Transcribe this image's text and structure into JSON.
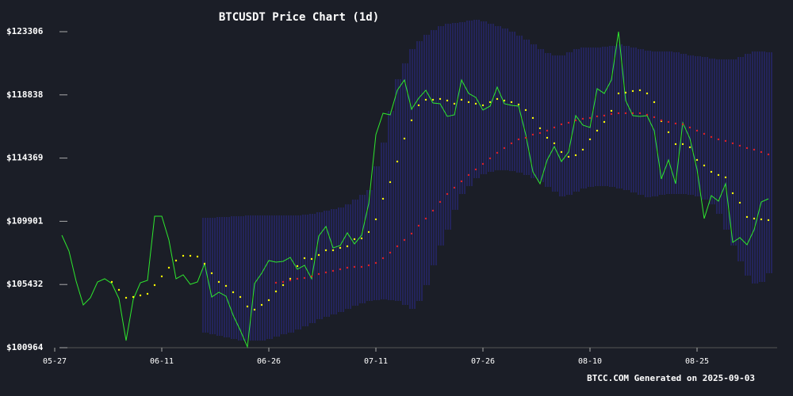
{
  "chart_data": {
    "type": "line",
    "title": "BTCUSDT Price Chart (1d)",
    "footer": "BTCC.COM Generated on 2025-09-03",
    "background": "#1b1e27",
    "categories": [
      "05-27",
      null,
      null,
      null,
      null,
      null,
      null,
      null,
      null,
      null,
      null,
      null,
      null,
      null,
      null,
      "06-11",
      null,
      null,
      null,
      null,
      null,
      null,
      null,
      null,
      null,
      null,
      null,
      null,
      null,
      null,
      "06-26",
      null,
      null,
      null,
      null,
      null,
      null,
      null,
      null,
      null,
      null,
      null,
      null,
      null,
      null,
      "07-11",
      null,
      null,
      null,
      null,
      null,
      null,
      null,
      null,
      null,
      null,
      null,
      null,
      null,
      null,
      "07-26",
      null,
      null,
      null,
      null,
      null,
      null,
      null,
      null,
      null,
      null,
      null,
      null,
      null,
      null,
      "08-10",
      null,
      null,
      null,
      null,
      null,
      null,
      null,
      null,
      null,
      null,
      null,
      null,
      null,
      null,
      "08-25",
      null,
      null,
      null,
      null,
      null,
      null,
      null,
      null,
      null,
      null
    ],
    "xticks": [
      0,
      15,
      30,
      45,
      60,
      75,
      90
    ],
    "ylim": [
      100964,
      123306
    ],
    "yticks": [
      {
        "value": 100964,
        "label": "$100964"
      },
      {
        "value": 105432,
        "label": "$105432"
      },
      {
        "value": 109901,
        "label": "$109901"
      },
      {
        "value": 114369,
        "label": "$114369"
      },
      {
        "value": 118838,
        "label": "$118838"
      },
      {
        "value": 123306,
        "label": "$123306"
      }
    ],
    "band": {
      "color": "#2b2b8c",
      "upper": [
        null,
        null,
        null,
        null,
        null,
        null,
        null,
        null,
        null,
        null,
        null,
        null,
        null,
        null,
        null,
        null,
        null,
        null,
        null,
        null,
        null,
        110148,
        110148,
        110204,
        110204,
        110260,
        110260,
        110316,
        110316,
        110316,
        110316,
        110316,
        110316,
        110316,
        110316,
        110372,
        110428,
        110540,
        110652,
        110764,
        110876,
        111100,
        111436,
        111772,
        112108,
        113788,
        115468,
        117708,
        119948,
        121068,
        122076,
        122636,
        123084,
        123420,
        123700,
        123868,
        123924,
        123980,
        124092,
        124148,
        124036,
        123868,
        123700,
        123532,
        123308,
        123028,
        122748,
        122412,
        122076,
        121796,
        121628,
        121628,
        121852,
        122076,
        122188,
        122188,
        122188,
        122244,
        122300,
        122412,
        122300,
        122188,
        122076,
        121964,
        121908,
        121908,
        121908,
        121852,
        121740,
        121628,
        121572,
        121516,
        121404,
        121348,
        121348,
        121348,
        121516,
        121740,
        121908,
        121908,
        121852
      ],
      "lower": [
        null,
        null,
        null,
        null,
        null,
        null,
        null,
        null,
        null,
        null,
        null,
        null,
        null,
        null,
        null,
        null,
        null,
        null,
        null,
        null,
        null,
        102028,
        101916,
        101804,
        101692,
        101580,
        101468,
        101468,
        101468,
        101468,
        101580,
        101748,
        101916,
        102028,
        102252,
        102476,
        102700,
        102980,
        103148,
        103316,
        103484,
        103708,
        103932,
        104100,
        104268,
        104324,
        104380,
        104324,
        104268,
        103988,
        103708,
        104268,
        105388,
        106788,
        108188,
        109308,
        110708,
        111828,
        112388,
        112948,
        113228,
        113396,
        113508,
        113508,
        113452,
        113340,
        113172,
        112948,
        112668,
        112332,
        111996,
        111660,
        111772,
        111996,
        112220,
        112332,
        112388,
        112388,
        112332,
        112220,
        112108,
        111940,
        111772,
        111604,
        111660,
        111772,
        111828,
        111828,
        111828,
        111772,
        111660,
        111436,
        111100,
        110428,
        109308,
        108188,
        107068,
        106060,
        105500,
        105612,
        106228
      ]
    },
    "series": [
      {
        "color": "#2ee82e",
        "style": "line",
        "values": [
          null,
          108916,
          107796,
          105668,
          103988,
          104492,
          105612,
          105836,
          105500,
          104436,
          101468,
          104380,
          105556,
          105724,
          110260,
          110260,
          108580,
          105836,
          106116,
          105444,
          105612,
          106900,
          104548,
          104884,
          104604,
          103260,
          102196,
          101020,
          105500,
          106228,
          107124,
          107012,
          107068,
          107348,
          106508,
          106788,
          105836,
          108860,
          109532,
          108020,
          108188,
          109084,
          108300,
          108916,
          111156,
          116028,
          117540,
          117428,
          119164,
          119892,
          117820,
          118604,
          119164,
          118268,
          118212,
          117316,
          117428,
          119892,
          118940,
          118660,
          117764,
          118044,
          119388,
          118212,
          118100,
          118044,
          116028,
          113396,
          112556,
          114236,
          115188,
          114124,
          114796,
          117372,
          116700,
          116532,
          119276,
          118940,
          119892,
          123306,
          118436,
          117372,
          117316,
          117372,
          116308,
          112892,
          114236,
          112556,
          116868,
          115748,
          113564,
          110092,
          111716,
          111324,
          112556,
          108412,
          108748,
          108244,
          109308,
          111268,
          111492
        ]
      },
      {
        "color": "#ffff00",
        "style": "dots",
        "values": [
          null,
          null,
          null,
          null,
          null,
          null,
          null,
          null,
          105612,
          105052,
          104492,
          104548,
          104660,
          104772,
          105388,
          106004,
          106620,
          107124,
          107460,
          107460,
          107404,
          106900,
          106228,
          105612,
          105332,
          104884,
          104548,
          103876,
          103652,
          103988,
          104324,
          104940,
          105388,
          105836,
          106732,
          107292,
          107236,
          107516,
          107852,
          107852,
          108020,
          108132,
          108636,
          108692,
          109140,
          110036,
          111492,
          112668,
          114124,
          115748,
          117036,
          118100,
          118492,
          118492,
          118548,
          118436,
          118212,
          118492,
          118324,
          118212,
          118100,
          118324,
          118548,
          118436,
          118324,
          118156,
          117764,
          117204,
          116476,
          115804,
          115412,
          114796,
          114460,
          114572,
          114964,
          115692,
          116308,
          116924,
          117708,
          118940,
          118996,
          119108,
          119164,
          118940,
          118324,
          116980,
          116196,
          115356,
          115356,
          115132,
          114236,
          113844,
          113396,
          113172,
          113004,
          111884,
          111212,
          110204,
          110092,
          110036,
          109980
        ]
      },
      {
        "color": "#e02020",
        "style": "dots",
        "values": [
          null,
          null,
          null,
          null,
          null,
          null,
          null,
          null,
          null,
          null,
          null,
          null,
          null,
          null,
          null,
          null,
          null,
          null,
          null,
          null,
          null,
          null,
          null,
          null,
          null,
          null,
          null,
          null,
          null,
          null,
          null,
          105556,
          105612,
          105724,
          105836,
          105892,
          106004,
          106172,
          106284,
          106396,
          106508,
          106620,
          106676,
          106676,
          106788,
          106956,
          107292,
          107684,
          108132,
          108580,
          109028,
          109588,
          110092,
          110652,
          111268,
          111828,
          112276,
          112724,
          113172,
          113564,
          113956,
          114348,
          114740,
          115076,
          115412,
          115692,
          115804,
          116028,
          116140,
          116308,
          116532,
          116756,
          116868,
          117036,
          117148,
          117204,
          117316,
          117372,
          117484,
          117540,
          117540,
          117540,
          117540,
          117428,
          117260,
          117036,
          116924,
          116812,
          116756,
          116532,
          116308,
          116084,
          115860,
          115692,
          115580,
          115412,
          115244,
          115076,
          114964,
          114796,
          114628
        ]
      }
    ]
  }
}
